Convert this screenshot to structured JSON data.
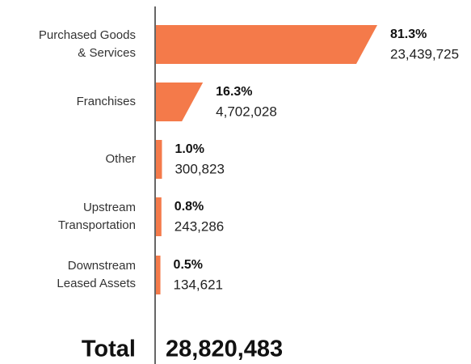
{
  "chart_data": {
    "type": "bar",
    "orientation": "horizontal",
    "color": "#f47a4a",
    "categories": [
      [
        "Purchased Goods",
        "& Services"
      ],
      [
        "Franchises"
      ],
      [
        "Other"
      ],
      [
        "Upstream",
        "Transportation"
      ],
      [
        "Downstream",
        "Leased Assets"
      ]
    ],
    "values": [
      23439725,
      4702028,
      300823,
      243286,
      134621
    ],
    "value_labels": [
      "23,439,725",
      "4,702,028",
      "300,823",
      "243,286",
      "134,621"
    ],
    "shares": [
      81.3,
      16.3,
      1.0,
      0.8,
      0.5
    ],
    "share_labels": [
      "81.3%",
      "16.3%",
      "1.0%",
      "0.8%",
      "0.5%"
    ],
    "total_label": "Total",
    "total": 28820483,
    "total_value_label": "28,820,483"
  }
}
